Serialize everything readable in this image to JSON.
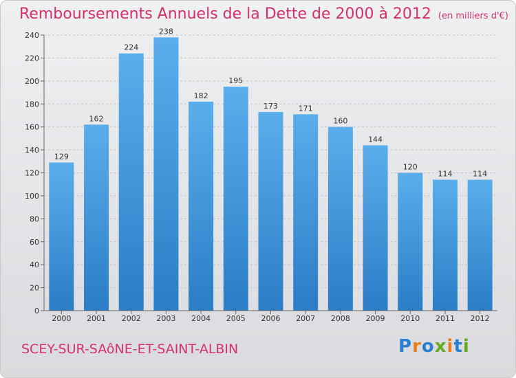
{
  "chart_data": {
    "type": "bar",
    "title": "Remboursements Annuels de la Dette de 2000 à 2012",
    "unit_label": "(en milliers d'€)",
    "categories": [
      "2000",
      "2001",
      "2002",
      "2003",
      "2004",
      "2005",
      "2006",
      "2007",
      "2008",
      "2009",
      "2010",
      "2011",
      "2012"
    ],
    "values": [
      129,
      162,
      224,
      238,
      182,
      195,
      173,
      171,
      160,
      144,
      120,
      114,
      114
    ],
    "ylim": [
      0,
      240
    ],
    "yticks": [
      0,
      20,
      40,
      60,
      80,
      100,
      120,
      140,
      160,
      180,
      200,
      220,
      240
    ],
    "grid": true,
    "bar_color": "#4c9de0"
  },
  "footer": {
    "commune": "SCEY-SUR-SAôNE-ET-SAINT-ALBIN",
    "logo": "Proxiti"
  },
  "colors": {
    "title": "#d6306b",
    "logo_letters": [
      "#2b7fd1",
      "#e87e1a",
      "#2b7fd1",
      "#6aaa22",
      "#e87e1a",
      "#2b7fd1",
      "#6aaa22"
    ]
  }
}
